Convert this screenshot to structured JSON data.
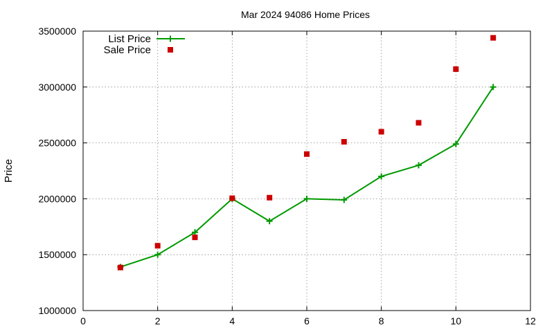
{
  "chart_data": {
    "type": "line",
    "title": "Mar 2024 94086 Home Prices",
    "xlabel": "",
    "ylabel": "Price",
    "xlim": [
      0,
      12
    ],
    "ylim": [
      1000000,
      3500000
    ],
    "x_ticks": [
      "0",
      "2",
      "4",
      "6",
      "8",
      "10",
      "12"
    ],
    "y_ticks": [
      "1000000",
      "1500000",
      "2000000",
      "2500000",
      "3000000",
      "3500000"
    ],
    "grid": true,
    "legend_position": "top-left",
    "series": [
      {
        "name": "List Price",
        "style": "line-points",
        "marker": "plus",
        "color": "#009900",
        "x": [
          1,
          2,
          3,
          4,
          5,
          6,
          7,
          8,
          9,
          10,
          11
        ],
        "y": [
          1390000,
          1500000,
          1700000,
          2000000,
          1800000,
          2000000,
          1990000,
          2200000,
          2300000,
          2490000,
          3000000
        ]
      },
      {
        "name": "Sale Price",
        "style": "points",
        "marker": "square",
        "color": "#cc0000",
        "x": [
          1,
          2,
          3,
          4,
          5,
          6,
          7,
          8,
          9,
          10,
          11
        ],
        "y": [
          1385000,
          1580000,
          1655000,
          2005000,
          2010000,
          2400000,
          2510000,
          2600000,
          2680000,
          3160000,
          3440000
        ]
      }
    ]
  }
}
